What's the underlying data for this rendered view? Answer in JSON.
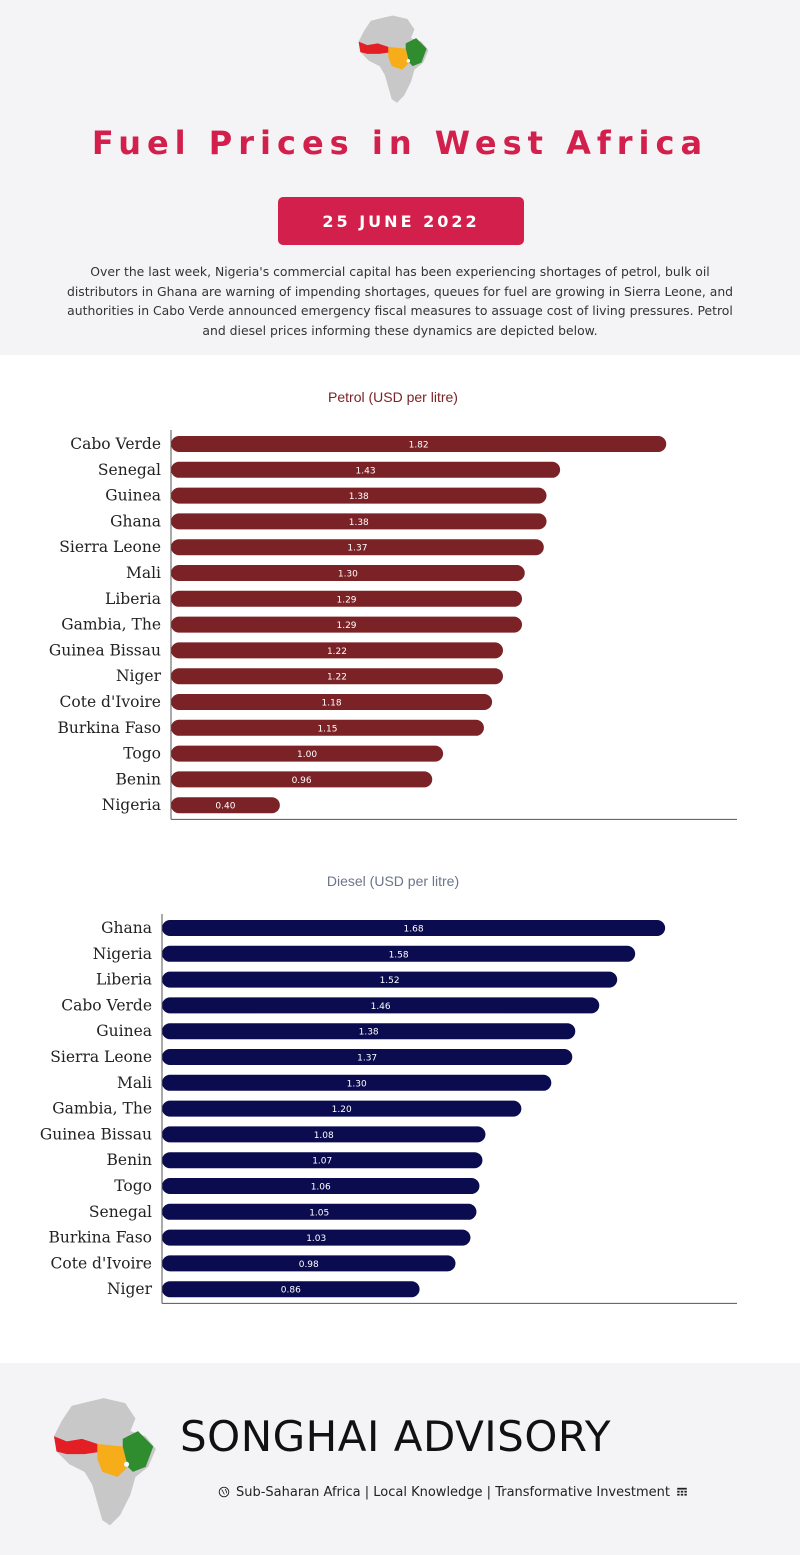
{
  "header": {
    "title": "Fuel Prices in West Africa",
    "date": "25 JUNE 2022",
    "intro": "Over the last week, Nigeria's commercial capital has been experiencing shortages of petrol, bulk oil distributors in Ghana are warning of impending shortages, queues for fuel are growing in Sierra Leone, and authorities in Cabo Verde announced emergency fiscal measures to assuage cost of living pressures. Petrol and diesel prices informing these dynamics are depicted below."
  },
  "chart_data": [
    {
      "type": "bar",
      "orientation": "horizontal",
      "title": "Petrol (USD per litre)",
      "categories": [
        "Cabo Verde",
        "Senegal",
        "Guinea",
        "Ghana",
        "Sierra Leone",
        "Mali",
        "Liberia",
        "Gambia, The",
        "Guinea Bissau",
        "Niger",
        "Cote d'Ivoire",
        "Burkina Faso",
        "Togo",
        "Benin",
        "Nigeria"
      ],
      "values": [
        1.82,
        1.43,
        1.38,
        1.38,
        1.37,
        1.3,
        1.29,
        1.29,
        1.22,
        1.22,
        1.18,
        1.15,
        1.0,
        0.96,
        0.4
      ],
      "value_labels": [
        "1.82",
        "1.43",
        "1.38",
        "1.38",
        "1.37",
        "1.30",
        "1.29",
        "1.29",
        "1.22",
        "1.22",
        "1.18",
        "1.15",
        "1.00",
        "0.96",
        "0.40"
      ],
      "xlim": [
        0,
        2.08
      ],
      "color": "#7b2226",
      "title_color": "#7b2226"
    },
    {
      "type": "bar",
      "orientation": "horizontal",
      "title": "Diesel (USD per litre)",
      "categories": [
        "Ghana",
        "Nigeria",
        "Liberia",
        "Cabo Verde",
        "Guinea",
        "Sierra Leone",
        "Mali",
        "Gambia, The",
        "Guinea Bissau",
        "Benin",
        "Togo",
        "Senegal",
        "Burkina Faso",
        "Cote d'Ivoire",
        "Niger"
      ],
      "values": [
        1.68,
        1.58,
        1.52,
        1.46,
        1.38,
        1.37,
        1.3,
        1.2,
        1.08,
        1.07,
        1.06,
        1.05,
        1.03,
        0.98,
        0.86
      ],
      "value_labels": [
        "1.68",
        "1.58",
        "1.52",
        "1.46",
        "1.38",
        "1.37",
        "1.30",
        "1.20",
        "1.08",
        "1.07",
        "1.06",
        "1.05",
        "1.03",
        "0.98",
        "0.86"
      ],
      "xlim": [
        0,
        1.92
      ],
      "color": "#0b0b50",
      "title_color": "#6b7589"
    }
  ],
  "footer": {
    "brand": "SONGHAI ADVISORY",
    "tagline": "Sub-Saharan Africa | Local Knowledge | Transformative Investment"
  },
  "colors": {
    "accent": "#d21f4b",
    "map_red": "#e31e24",
    "map_orange": "#f7ad19",
    "map_green": "#2f8c2f",
    "map_grey": "#c8c8c8"
  }
}
